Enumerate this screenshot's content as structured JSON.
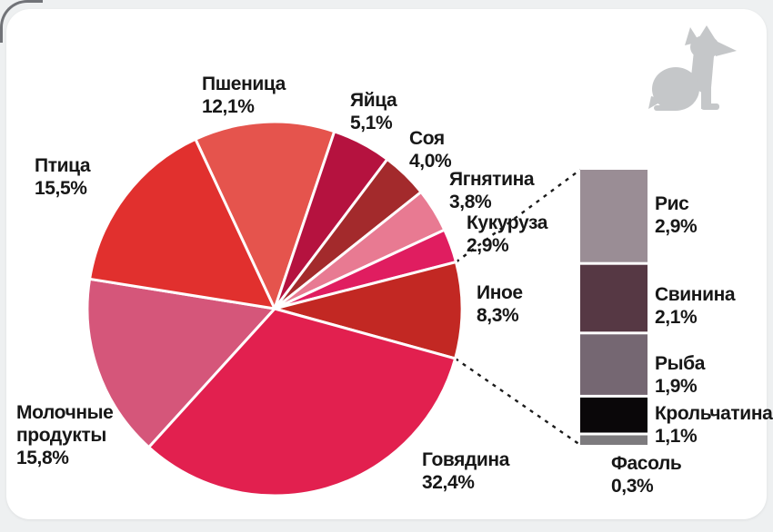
{
  "decor": {
    "dog_icon_color": "#c5c7c9",
    "card_background": "#ffffff",
    "page_background": "#eef0f1",
    "text_color": "#171717",
    "callout_line_color": "#1b1b1b"
  },
  "chart_data": {
    "type": "pie",
    "title": "",
    "unit": "%",
    "decimal_separator": ",",
    "legend_position": "around-slices",
    "slices": [
      {
        "key": "wheat",
        "label": "Пшеница",
        "value": 12.1,
        "value_text": "12,1%",
        "color": "#e5544d"
      },
      {
        "key": "eggs",
        "label": "Яйца",
        "value": 5.1,
        "value_text": "5,1%",
        "color": "#b5123f"
      },
      {
        "key": "soy",
        "label": "Соя",
        "value": 4.0,
        "value_text": "4,0%",
        "color": "#a32a2c"
      },
      {
        "key": "lamb",
        "label": "Ягнятина",
        "value": 3.8,
        "value_text": "3,8%",
        "color": "#e87a92"
      },
      {
        "key": "corn",
        "label": "Кукуруза",
        "value": 2.9,
        "value_text": "2,9%",
        "color": "#e01d60"
      },
      {
        "key": "other",
        "label": "Иное",
        "value": 8.3,
        "value_text": "8,3%",
        "color": "#c22823"
      },
      {
        "key": "beef",
        "label": "Говядина",
        "value": 32.4,
        "value_text": "32,4%",
        "color": "#e2204f"
      },
      {
        "key": "dairy",
        "label": "Молочные продукты",
        "label_lines": [
          "Молочные",
          "продукты"
        ],
        "value": 15.8,
        "value_text": "15,8%",
        "color": "#d5567a"
      },
      {
        "key": "poultry",
        "label": "Птица",
        "value": 15.5,
        "value_text": "15,5%",
        "color": "#e1302e"
      }
    ],
    "breakdown": {
      "of": "Иное",
      "type": "stacked-bar",
      "segments": [
        {
          "key": "rice",
          "label": "Рис",
          "value": 2.9,
          "value_text": "2,9%",
          "color": "#9a8d95"
        },
        {
          "key": "pork",
          "label": "Свинина",
          "value": 2.1,
          "value_text": "2,1%",
          "color": "#563844"
        },
        {
          "key": "fish",
          "label": "Рыба",
          "value": 1.9,
          "value_text": "1,9%",
          "color": "#756772"
        },
        {
          "key": "rabbit",
          "label": "Крольчатина",
          "value": 1.1,
          "value_text": "1,1%",
          "color": "#0a0709"
        },
        {
          "key": "beans",
          "label": "Фасоль",
          "value": 0.3,
          "value_text": "0,3%",
          "color": "#7d7b7e"
        }
      ]
    }
  }
}
